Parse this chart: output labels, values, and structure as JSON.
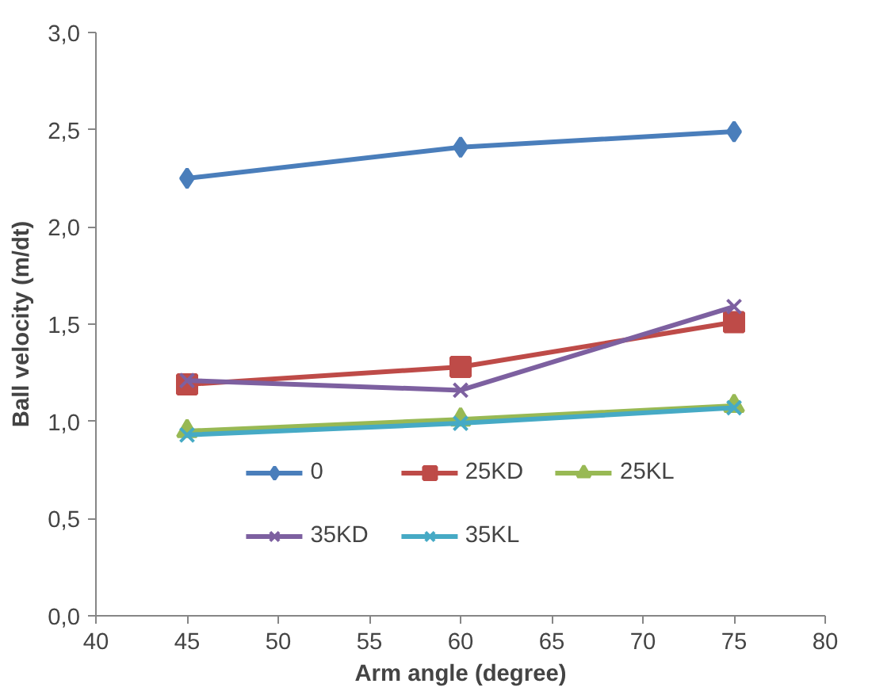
{
  "chart_data": {
    "type": "line",
    "xlabel": "Arm angle (degree)",
    "ylabel": "Ball velocity (m/dt)",
    "x": [
      45,
      60,
      75
    ],
    "series": [
      {
        "name": "0",
        "color": "#4a7ebb",
        "marker": "diamond",
        "values": [
          2.25,
          2.41,
          2.49
        ]
      },
      {
        "name": "25KD",
        "color": "#be4b48",
        "marker": "square",
        "values": [
          1.19,
          1.28,
          1.51
        ]
      },
      {
        "name": "25KL",
        "color": "#98b954",
        "marker": "triangle",
        "values": [
          0.95,
          1.01,
          1.08
        ]
      },
      {
        "name": "35KD",
        "color": "#7d60a0",
        "marker": "cross",
        "values": [
          1.21,
          1.16,
          1.59
        ]
      },
      {
        "name": "35KL",
        "color": "#46aac5",
        "marker": "cross",
        "values": [
          0.93,
          0.99,
          1.07
        ]
      }
    ],
    "xlim": [
      40,
      80
    ],
    "xticks": [
      40,
      45,
      50,
      55,
      60,
      65,
      70,
      75,
      80
    ],
    "ylim": [
      0,
      3
    ],
    "yticks": [
      {
        "value": 0,
        "label": "0,0"
      },
      {
        "value": 0.5,
        "label": "0,5"
      },
      {
        "value": 1,
        "label": "1,0"
      },
      {
        "value": 1.5,
        "label": "1,5"
      },
      {
        "value": 2,
        "label": "2,0"
      },
      {
        "value": 2.5,
        "label": "2,5"
      },
      {
        "value": 3,
        "label": "3,0"
      }
    ],
    "legend": "bottom",
    "grid": false,
    "line_style": "solid"
  }
}
